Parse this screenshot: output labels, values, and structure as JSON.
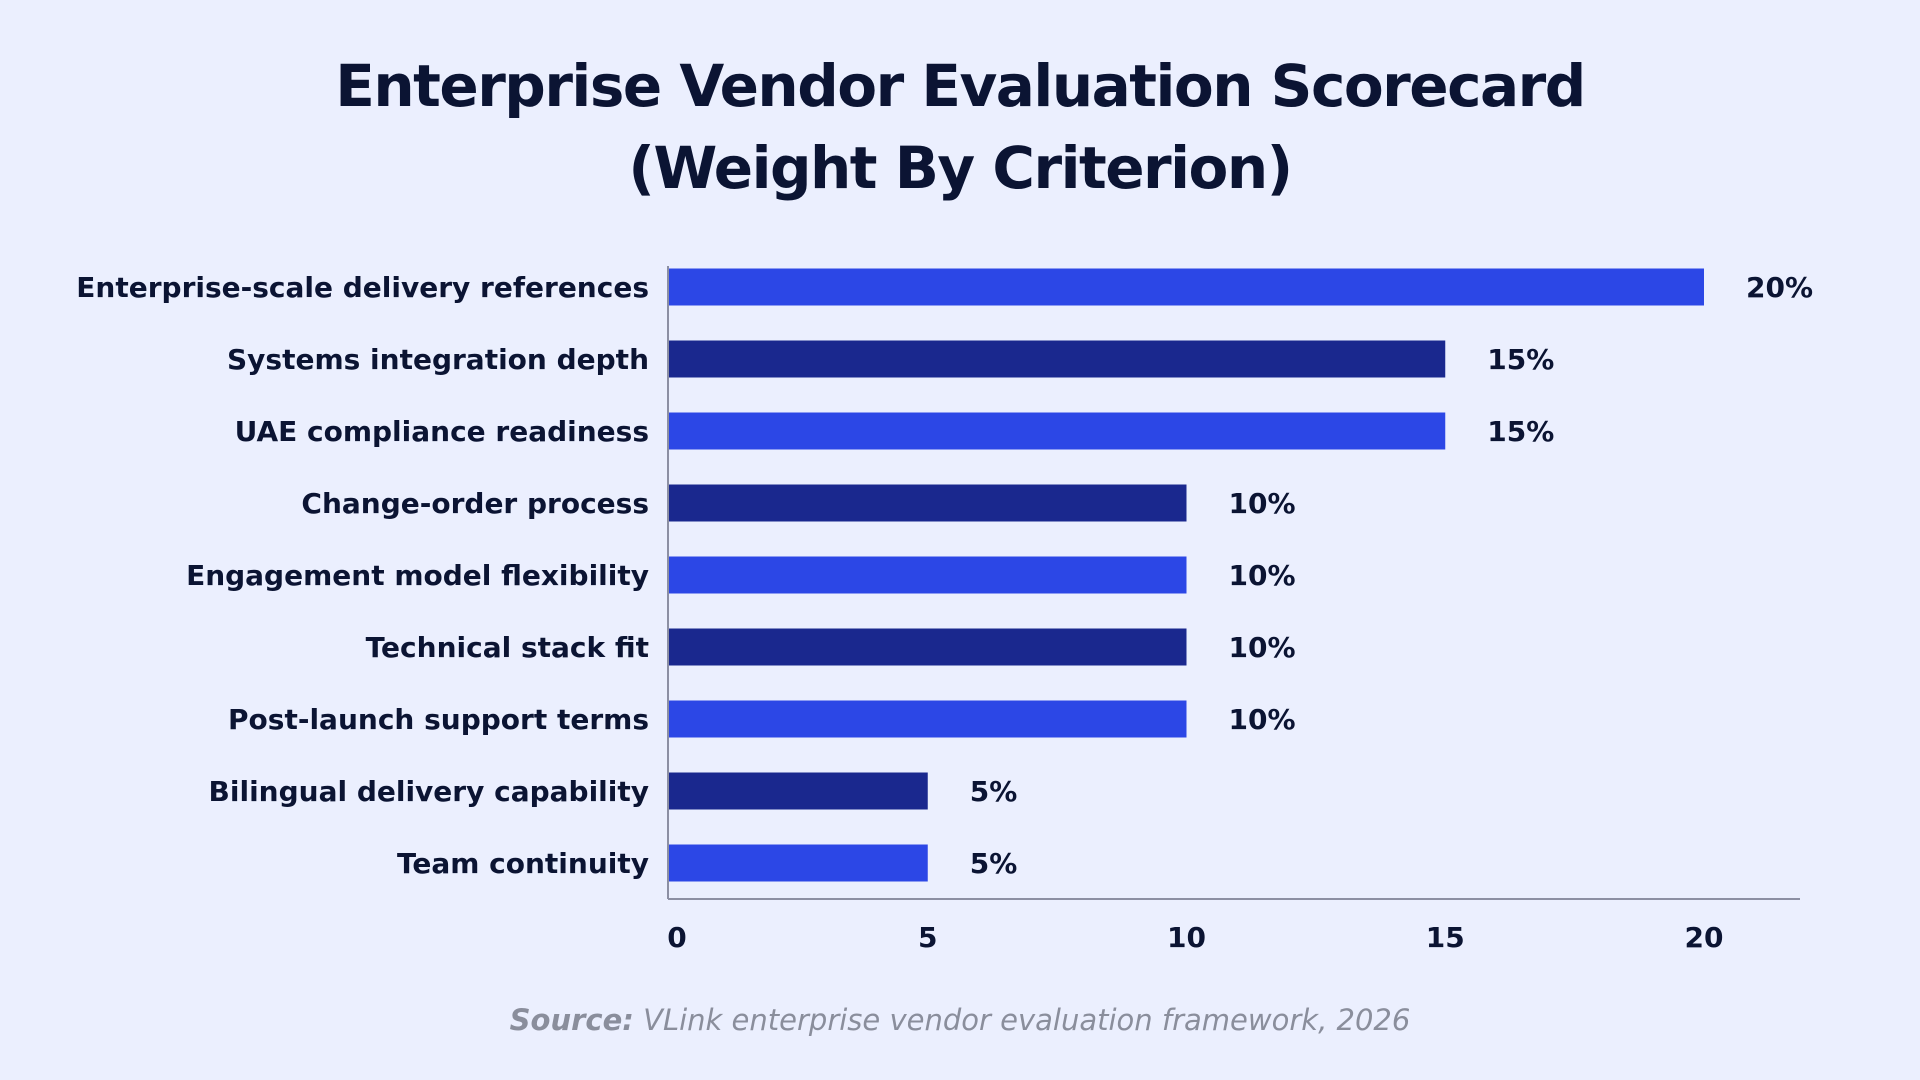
{
  "title_line1": "Enterprise Vendor Evaluation Scorecard",
  "title_line2": "(Weight By Criterion)",
  "source_label": "Source:",
  "source_text": " VLink enterprise vendor evaluation framework, 2026",
  "colors": {
    "background": "#EBEFFE",
    "bar_light": "#2C47E6",
    "bar_dark": "#1A288E",
    "axis": "#8C8FA3",
    "text": "#0B1433"
  },
  "chart_data": {
    "type": "bar",
    "orientation": "horizontal",
    "title": "Enterprise Vendor Evaluation Scorecard (Weight By Criterion)",
    "categories": [
      "Enterprise-scale delivery references",
      "Systems integration depth",
      "UAE compliance readiness",
      "Change-order process",
      "Engagement model flexibility",
      "Technical stack fit",
      "Post-launch support terms",
      "Bilingual delivery capability",
      "Team continuity"
    ],
    "values": [
      20,
      15,
      15,
      10,
      10,
      10,
      10,
      5,
      5
    ],
    "value_labels": [
      "20%",
      "15%",
      "15%",
      "10%",
      "10%",
      "10%",
      "10%",
      "5%",
      "5%"
    ],
    "xticks": [
      "0",
      "5",
      "10",
      "15",
      "20"
    ],
    "xlim": [
      0,
      22
    ],
    "xlabel": "",
    "ylabel": "",
    "grid": false
  }
}
